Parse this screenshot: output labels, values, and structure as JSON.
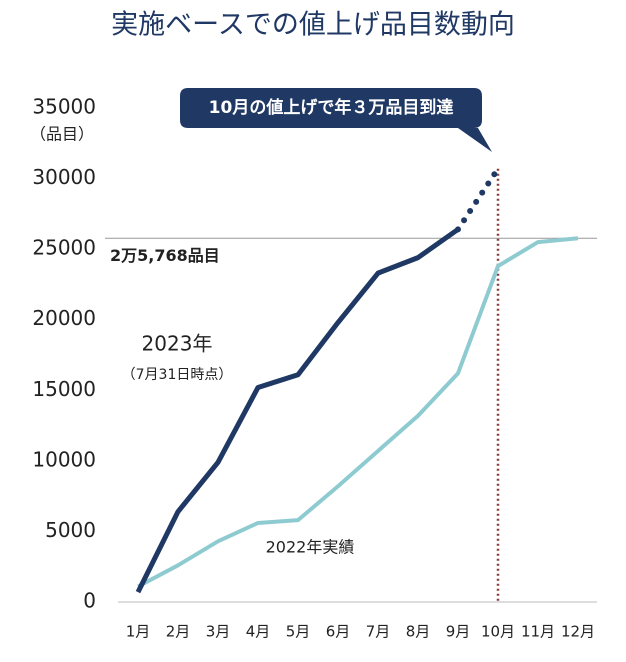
{
  "chart_data": {
    "type": "line",
    "title": "実施ベースでの値上げ品目数動向",
    "y_unit": "（品目）",
    "categories": [
      "1月",
      "2月",
      "3月",
      "4月",
      "5月",
      "6月",
      "7月",
      "8月",
      "9月",
      "10月",
      "11月",
      "12月"
    ],
    "ylim": [
      0,
      35000
    ],
    "yticks": [
      0,
      5000,
      10000,
      15000,
      20000,
      25000,
      30000,
      35000
    ],
    "grid": false,
    "series": [
      {
        "name": "2023年",
        "note": "（7月31日時点）",
        "color": "#1f3864",
        "dotted_from_index": 8,
        "values": [
          700,
          6400,
          9900,
          15200,
          16100,
          19800,
          23300,
          24400,
          26400,
          30700,
          null,
          null
        ]
      },
      {
        "name": "2022年実績",
        "color": "#8ecbd1",
        "values": [
          1100,
          2600,
          4300,
          5600,
          5800,
          8200,
          10700,
          13200,
          16200,
          23800,
          25500,
          25768
        ]
      }
    ],
    "reference_line": {
      "value": 25768,
      "label": "2万5,768品目"
    },
    "callout": {
      "text": "10月の値上げで年３万品目到達",
      "category_index": 9,
      "color": "#8b3a3a"
    }
  }
}
